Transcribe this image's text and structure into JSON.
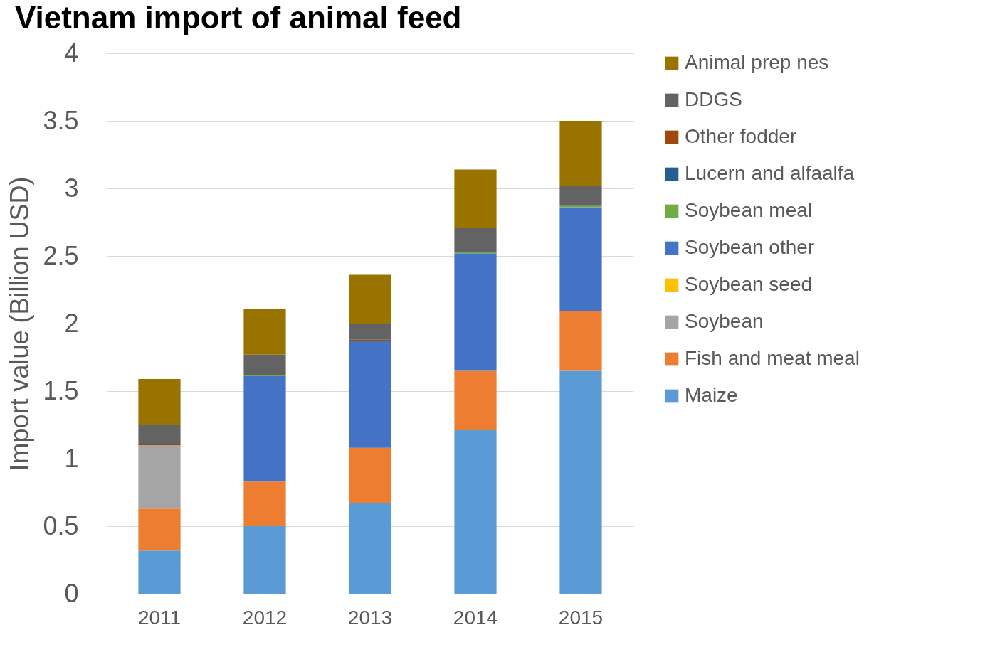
{
  "chart_data": {
    "type": "bar",
    "title": "Vietnam import of animal feed",
    "ylabel": "Import value (Billion USD)",
    "categories": [
      "2011",
      "2012",
      "2013",
      "2014",
      "2015"
    ],
    "stacked": true,
    "ylim": [
      0,
      4
    ],
    "yticks": [
      0,
      0.5,
      1,
      1.5,
      2,
      2.5,
      3,
      3.5,
      4
    ],
    "grid": "y",
    "legend": "right",
    "series": [
      {
        "name": "Maize",
        "color": "#5b9bd5",
        "values": [
          0.32,
          0.5,
          0.67,
          1.21,
          1.65
        ]
      },
      {
        "name": "Fish and meat meal",
        "color": "#ed7d31",
        "values": [
          0.31,
          0.33,
          0.41,
          0.44,
          0.44
        ]
      },
      {
        "name": "Soybean",
        "color": "#a5a5a5",
        "values": [
          0.47,
          0,
          0,
          0,
          0
        ]
      },
      {
        "name": "Soybean seed",
        "color": "#ffc000",
        "values": [
          0,
          0,
          0,
          0,
          0
        ]
      },
      {
        "name": "Soybean other",
        "color": "#4472c4",
        "values": [
          0,
          0.78,
          0.79,
          0.87,
          0.77
        ]
      },
      {
        "name": "Soybean meal",
        "color": "#70ad47",
        "values": [
          0,
          0.01,
          0,
          0.01,
          0.01
        ]
      },
      {
        "name": "Lucern and alfaalfa",
        "color": "#255e91",
        "values": [
          0,
          0,
          0,
          0,
          0
        ]
      },
      {
        "name": "Other fodder",
        "color": "#9e480e",
        "values": [
          0.01,
          0,
          0.01,
          0,
          0
        ]
      },
      {
        "name": "DDGS",
        "color": "#636363",
        "values": [
          0.14,
          0.15,
          0.12,
          0.18,
          0.15
        ]
      },
      {
        "name": "Animal prep nes",
        "color": "#997300",
        "values": [
          0.34,
          0.34,
          0.36,
          0.43,
          0.48
        ]
      }
    ]
  }
}
